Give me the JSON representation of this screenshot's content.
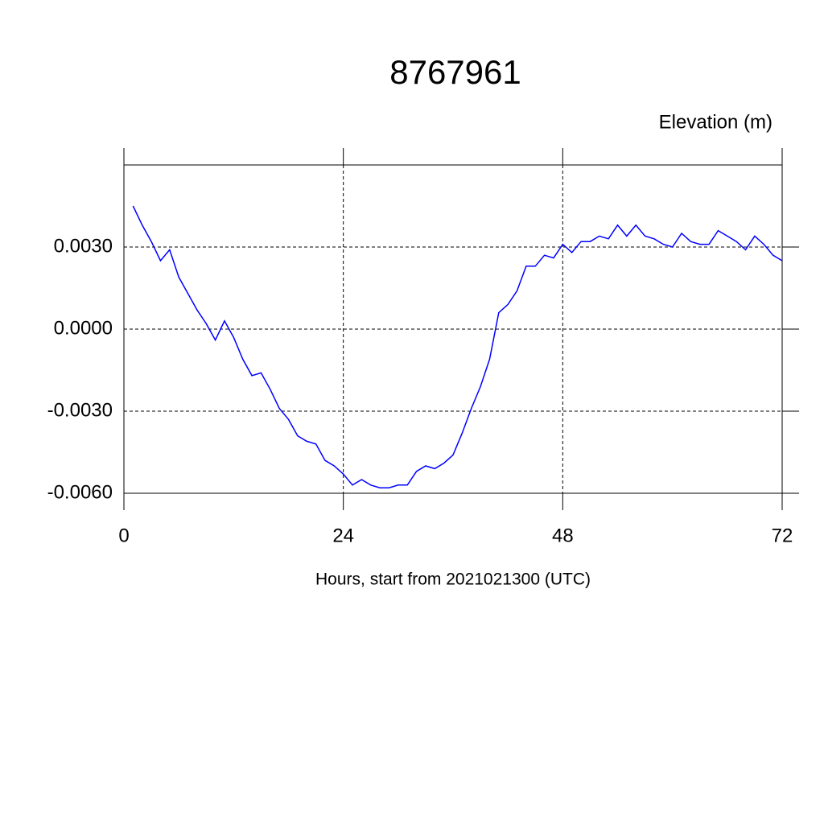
{
  "chart_data": {
    "type": "line",
    "title": "8767961",
    "ylabel": "Elevation (m)",
    "xlabel": "Hours, start from 2021021300 (UTC)",
    "xlim": [
      0,
      72
    ],
    "xticks": [
      0,
      24,
      48,
      72
    ],
    "ylim": [
      -0.006,
      0.006
    ],
    "yticks": [
      {
        "value": -0.006,
        "label": "-0.0060"
      },
      {
        "value": -0.003,
        "label": "-0.0030"
      },
      {
        "value": 0,
        "label": "0.0000"
      },
      {
        "value": 0.003,
        "label": "0.0030"
      }
    ],
    "grid": true,
    "x": [
      1,
      2,
      3,
      4,
      5,
      6,
      7,
      8,
      9,
      10,
      11,
      12,
      13,
      14,
      15,
      16,
      17,
      18,
      19,
      20,
      21,
      22,
      23,
      24,
      25,
      26,
      27,
      28,
      29,
      30,
      31,
      32,
      33,
      34,
      35,
      36,
      37,
      38,
      39,
      40,
      41,
      42,
      43,
      44,
      45,
      46,
      47,
      48,
      49,
      50,
      51,
      52,
      53,
      54,
      55,
      56,
      57,
      58,
      59,
      60,
      61,
      62,
      63,
      64,
      65,
      66,
      67,
      68,
      69,
      70,
      71,
      72
    ],
    "series": [
      {
        "color": "#0000ff",
        "values": [
          0.0045,
          0.0038,
          0.0032,
          0.0025,
          0.0029,
          0.0019,
          0.0013,
          0.0007,
          0.0002,
          -0.0004,
          0.0003,
          -0.0003,
          -0.0011,
          -0.0017,
          -0.0016,
          -0.0022,
          -0.0029,
          -0.0033,
          -0.0039,
          -0.0041,
          -0.0042,
          -0.0048,
          -0.005,
          -0.0053,
          -0.0057,
          -0.0055,
          -0.0057,
          -0.0058,
          -0.0058,
          -0.0057,
          -0.0057,
          -0.0052,
          -0.005,
          -0.0051,
          -0.0049,
          -0.0046,
          -0.0038,
          -0.0029,
          -0.0021,
          -0.0011,
          0.0006,
          0.0009,
          0.0014,
          0.0023,
          0.0023,
          0.0027,
          0.0026,
          0.0031,
          0.0028,
          0.0032,
          0.0032,
          0.0034,
          0.0033,
          0.0038,
          0.0034,
          0.0038,
          0.0034,
          0.0033,
          0.0031,
          0.003,
          0.0035,
          0.0032,
          0.0031,
          0.0031,
          0.0036,
          0.0034,
          0.0032,
          0.0029,
          0.0034,
          0.0031,
          0.0027,
          0.0025
        ]
      }
    ]
  }
}
